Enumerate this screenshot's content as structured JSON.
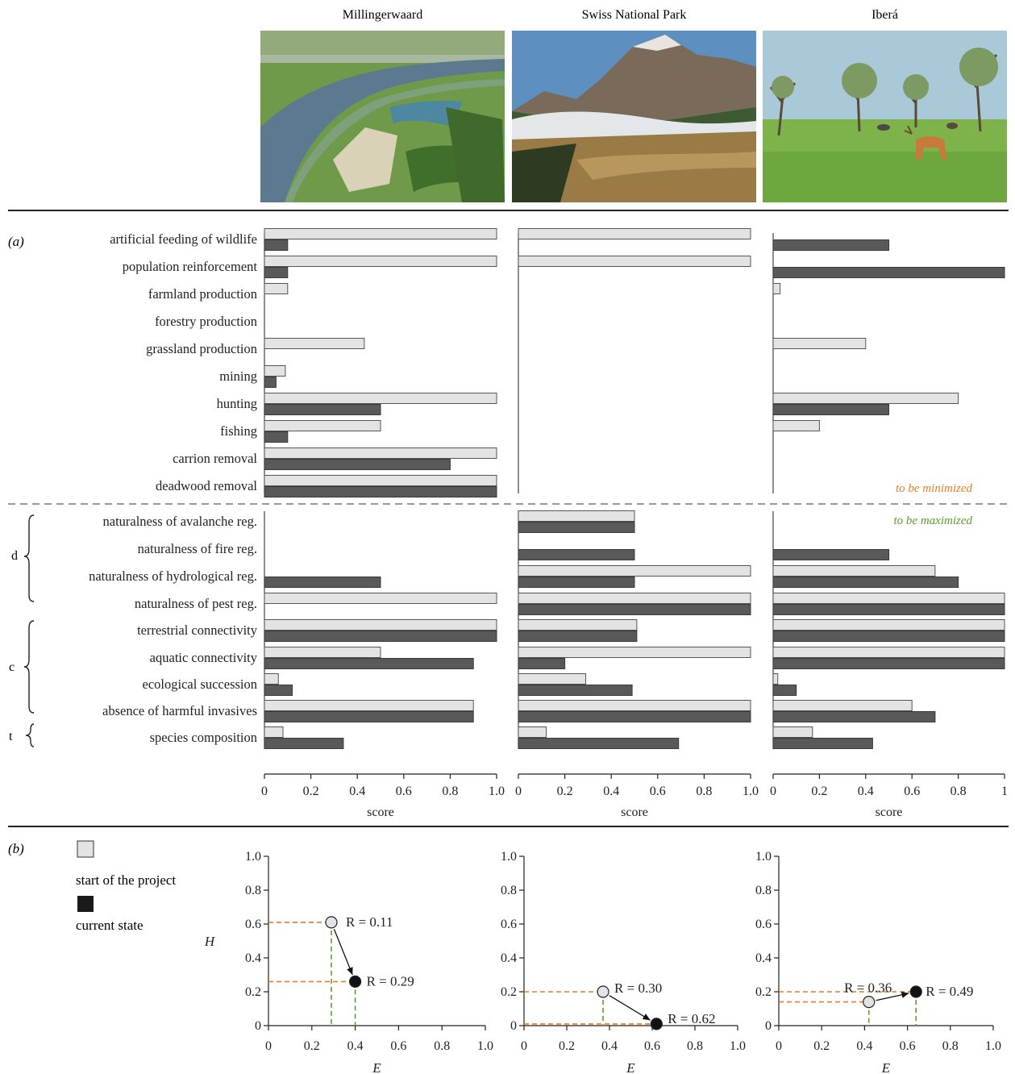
{
  "sites": [
    {
      "name": "Millingerwaard",
      "photo_icon": "river-floodplain-aerial-photo"
    },
    {
      "name": "Swiss National Park",
      "photo_icon": "mountain-valley-photo"
    },
    {
      "name": "Iberá",
      "photo_icon": "savanna-with-deer-photo"
    }
  ],
  "panel_a_label": "(a)",
  "panel_b_label": "(b)",
  "min_note": "to be minimized",
  "max_note": "to be maximized",
  "colors": {
    "start": "#e3e3e3",
    "current": "#595959",
    "min_note": "#e67e22",
    "max_note": "#5aa02c",
    "guide_h": "#e67e22",
    "guide_v": "#5aa02c"
  },
  "groups": {
    "d": "d",
    "c": "c",
    "t": "t"
  },
  "legend": {
    "start": "start of the project",
    "current": "current state"
  },
  "chart_data": [
    {
      "type": "bar",
      "orientation": "horizontal",
      "title": "Millingerwaard",
      "xlabel": "score",
      "xlim": [
        0,
        1.0
      ],
      "xticks": [
        "0",
        "0.2",
        "0.4",
        "0.6",
        "0.8",
        "1.0"
      ],
      "categories": [
        "artificial feeding of wildlife",
        "population reinforcement",
        "farmland production",
        "forestry production",
        "grassland production",
        "mining",
        "hunting",
        "fishing",
        "carrion removal",
        "deadwood removal",
        "naturalness of avalanche reg.",
        "naturalness of fire reg.",
        "naturalness of hydrological reg.",
        "naturalness of pest reg.",
        "terrestrial connectivity",
        "aquatic connectivity",
        "ecological succession",
        "absence of harmful invasives",
        "species composition"
      ],
      "series": [
        {
          "name": "start of the project",
          "values": [
            1.0,
            1.0,
            0.1,
            0,
            0.43,
            0.09,
            1.0,
            0.5,
            1.0,
            1.0,
            null,
            null,
            null,
            1.0,
            1.0,
            0.5,
            0.06,
            0.9,
            0.08
          ]
        },
        {
          "name": "current state",
          "values": [
            0.1,
            0.1,
            0,
            0,
            0,
            0.05,
            0.5,
            0.1,
            0.8,
            1.0,
            null,
            null,
            0.5,
            null,
            1.0,
            0.9,
            0.12,
            0.9,
            0.34
          ]
        }
      ]
    },
    {
      "type": "bar",
      "orientation": "horizontal",
      "title": "Swiss National Park",
      "xlabel": "score",
      "xlim": [
        0,
        1.0
      ],
      "xticks": [
        "0",
        "0.2",
        "0.4",
        "0.6",
        "0.8",
        "1.0"
      ],
      "categories": [
        "artificial feeding of wildlife",
        "population reinforcement",
        "farmland production",
        "forestry production",
        "grassland production",
        "mining",
        "hunting",
        "fishing",
        "carrion removal",
        "deadwood removal",
        "naturalness of avalanche reg.",
        "naturalness of fire reg.",
        "naturalness of hydrological reg.",
        "naturalness of pest reg.",
        "terrestrial connectivity",
        "aquatic connectivity",
        "ecological succession",
        "absence of harmful invasives",
        "species composition"
      ],
      "series": [
        {
          "name": "start of the project",
          "values": [
            1.0,
            1.0,
            0,
            0,
            0,
            0,
            0,
            0,
            0,
            0,
            0.5,
            null,
            1.0,
            1.0,
            0.51,
            1.0,
            0.29,
            1.0,
            0.12
          ]
        },
        {
          "name": "current state",
          "values": [
            0,
            0,
            0,
            0,
            0,
            0,
            0,
            0,
            0,
            0,
            0.5,
            0.5,
            0.5,
            1.0,
            0.51,
            0.2,
            0.49,
            1.0,
            0.69
          ]
        }
      ]
    },
    {
      "type": "bar",
      "orientation": "horizontal",
      "title": "Iberá",
      "xlabel": "score",
      "xlim": [
        0,
        1
      ],
      "xticks": [
        "0",
        "0.2",
        "0.4",
        "0.6",
        "0.8",
        "1"
      ],
      "categories": [
        "artificial feeding of wildlife",
        "population reinforcement",
        "farmland production",
        "forestry production",
        "grassland production",
        "mining",
        "hunting",
        "fishing",
        "carrion removal",
        "deadwood removal",
        "naturalness of avalanche reg.",
        "naturalness of fire reg.",
        "naturalness of hydrological reg.",
        "naturalness of pest reg.",
        "terrestrial connectivity",
        "aquatic connectivity",
        "ecological succession",
        "absence of harmful invasives",
        "species composition"
      ],
      "series": [
        {
          "name": "start of the project",
          "values": [
            0,
            0,
            0.03,
            0,
            0.4,
            0,
            0.8,
            0.2,
            0,
            0,
            null,
            null,
            0.7,
            1.0,
            1.0,
            1.0,
            0.02,
            0.6,
            0.17
          ]
        },
        {
          "name": "current state",
          "values": [
            0.5,
            1.0,
            0,
            0,
            0,
            0,
            0.5,
            0,
            0,
            0,
            null,
            0.5,
            0.8,
            1.0,
            1.0,
            1.0,
            0.1,
            0.7,
            0.43
          ]
        }
      ]
    },
    {
      "type": "scatter",
      "xlabel": "E",
      "ylabel": "H",
      "xlim": [
        0,
        1.0
      ],
      "ylim": [
        0,
        1.0
      ],
      "xticks": [
        "0",
        "0.2",
        "0.4",
        "0.6",
        "0.8",
        "1.0"
      ],
      "yticks": [
        "0",
        "0.2",
        "0.4",
        "0.6",
        "0.8",
        "1.0"
      ],
      "points": [
        {
          "series": "start of the project",
          "x": 0.29,
          "y": 0.61,
          "label": "R = 0.11"
        },
        {
          "series": "current state",
          "x": 0.4,
          "y": 0.26,
          "label": "R = 0.29"
        }
      ]
    },
    {
      "type": "scatter",
      "xlabel": "E",
      "ylabel": "",
      "xlim": [
        0,
        1.0
      ],
      "ylim": [
        0,
        1.0
      ],
      "xticks": [
        "0",
        "0.2",
        "0.4",
        "0.6",
        "0.8",
        "1.0"
      ],
      "yticks": [
        "0",
        "0.2",
        "0.4",
        "0.6",
        "0.8",
        "1.0"
      ],
      "points": [
        {
          "series": "start of the project",
          "x": 0.37,
          "y": 0.2,
          "label": "R = 0.30"
        },
        {
          "series": "current state",
          "x": 0.62,
          "y": 0.01,
          "label": "R = 0.62"
        }
      ]
    },
    {
      "type": "scatter",
      "xlabel": "E",
      "ylabel": "",
      "xlim": [
        0,
        1.0
      ],
      "ylim": [
        0,
        1.0
      ],
      "xticks": [
        "0",
        "0.2",
        "0.4",
        "0.6",
        "0.8",
        "1.0"
      ],
      "yticks": [
        "0",
        "0.2",
        "0.4",
        "0.6",
        "0.8",
        "1.0"
      ],
      "points": [
        {
          "series": "start of the project",
          "x": 0.42,
          "y": 0.14,
          "label": "R = 0.36"
        },
        {
          "series": "current state",
          "x": 0.64,
          "y": 0.2,
          "label": "R = 0.49"
        }
      ]
    }
  ]
}
